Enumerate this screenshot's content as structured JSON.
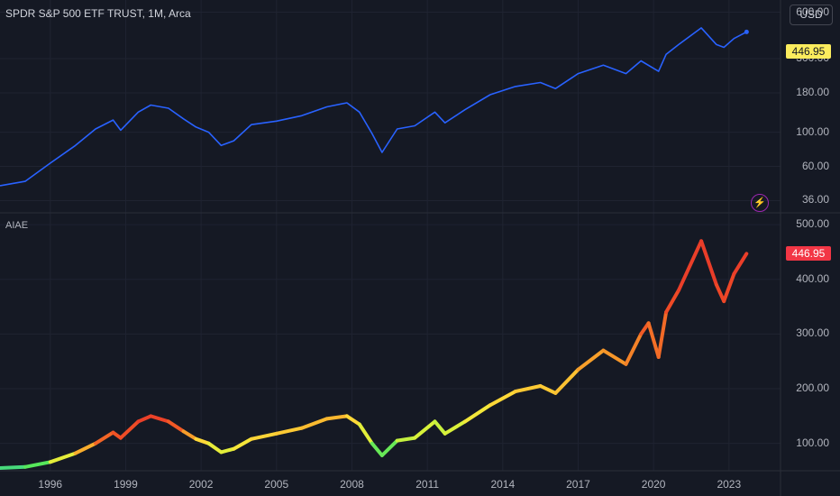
{
  "header": {
    "symbol_title": "SPDR S&P 500 ETF TRUST, 1M, Arca",
    "currency_button": "USD"
  },
  "indicator_pane": {
    "label": "AIAE"
  },
  "price_badges": {
    "top_pane": "446.95",
    "bottom_pane": "446.95"
  },
  "icons": {
    "alert": "lightning-bolt-icon"
  },
  "colors": {
    "background": "#151924",
    "top_series_line": "#2962ff",
    "top_badge": "#fbec5d",
    "bottom_badge": "#f23645",
    "gradient": [
      "#3ab0e0",
      "#4be65e",
      "#d8f23a",
      "#ffe23a",
      "#f7a12a",
      "#f05025",
      "#e42d2d"
    ]
  },
  "chart_data": [
    {
      "type": "line",
      "title": "SPDR S&P 500 ETF TRUST, 1M, Arca",
      "y_scale": "log",
      "ylim": [
        30,
        720
      ],
      "y_ticks": [
        "600.00",
        "300.00",
        "180.00",
        "100.00",
        "60.00",
        "36.00"
      ],
      "x_ticks": [
        "1996",
        "1999",
        "2002",
        "2005",
        "2008",
        "2011",
        "2014",
        "2017",
        "2020",
        "2023"
      ],
      "last_value": "446.95",
      "series": [
        {
          "x": [
            1994.0,
            1995.0,
            1996.0,
            1997.0,
            1997.8,
            1998.5,
            1998.8,
            1999.5,
            2000.0,
            2000.7,
            2001.3,
            2001.8,
            2002.3,
            2002.8,
            2003.3,
            2004.0,
            2005.0,
            2006.0,
            2007.0,
            2007.8,
            2008.3,
            2008.8,
            2009.2,
            2009.8,
            2010.5,
            2011.3,
            2011.7,
            2012.5,
            2013.5,
            2014.5,
            2015.5,
            2016.1,
            2017.0,
            2018.0,
            2018.9,
            2019.5,
            2020.2,
            2020.5,
            2021.0,
            2021.9,
            2022.5,
            2022.8,
            2023.2,
            2023.7
          ],
          "y": [
            45,
            48,
            63,
            82,
            105,
            120,
            103,
            135,
            150,
            143,
            122,
            108,
            100,
            82,
            88,
            112,
            118,
            128,
            146,
            155,
            135,
            98,
            74,
            105,
            110,
            135,
            115,
            140,
            175,
            198,
            210,
            192,
            240,
            272,
            240,
            290,
            248,
            320,
            370,
            475,
            370,
            355,
            405,
            447
          ]
        }
      ]
    },
    {
      "type": "line",
      "title": "AIAE",
      "y_scale": "linear",
      "ylim": [
        50,
        520
      ],
      "y_ticks": [
        "500.00",
        "400.00",
        "300.00",
        "200.00",
        "100.00"
      ],
      "x_ticks": [
        "1996",
        "1999",
        "2002",
        "2005",
        "2008",
        "2011",
        "2014",
        "2017",
        "2020",
        "2023"
      ],
      "last_value": "446.95",
      "series": [
        {
          "x": [
            1994.0,
            1995.0,
            1996.0,
            1997.0,
            1997.8,
            1998.5,
            1998.8,
            1999.5,
            2000.0,
            2000.7,
            2001.3,
            2001.8,
            2002.3,
            2002.8,
            2003.3,
            2004.0,
            2005.0,
            2006.0,
            2007.0,
            2007.8,
            2008.3,
            2008.8,
            2009.2,
            2009.8,
            2010.5,
            2011.3,
            2011.7,
            2012.5,
            2013.5,
            2014.5,
            2015.5,
            2016.1,
            2017.0,
            2018.0,
            2018.9,
            2019.5,
            2019.8,
            2020.2,
            2020.5,
            2021.0,
            2021.9,
            2022.5,
            2022.8,
            2023.2,
            2023.7
          ],
          "y": [
            55,
            57,
            66,
            82,
            100,
            120,
            110,
            140,
            150,
            140,
            122,
            108,
            100,
            84,
            90,
            108,
            118,
            128,
            145,
            150,
            135,
            100,
            78,
            105,
            110,
            140,
            118,
            140,
            170,
            195,
            205,
            192,
            235,
            270,
            245,
            300,
            320,
            258,
            340,
            380,
            470,
            390,
            360,
            410,
            447
          ],
          "gradient_strength": [
            0.12,
            0.14,
            0.22,
            0.55,
            0.72,
            0.86,
            0.8,
            0.9,
            0.92,
            0.88,
            0.75,
            0.6,
            0.45,
            0.35,
            0.4,
            0.52,
            0.55,
            0.58,
            0.62,
            0.6,
            0.45,
            0.3,
            0.1,
            0.3,
            0.32,
            0.35,
            0.28,
            0.4,
            0.5,
            0.55,
            0.58,
            0.55,
            0.62,
            0.72,
            0.66,
            0.8,
            0.82,
            0.72,
            0.84,
            0.88,
            0.95,
            0.9,
            0.86,
            0.9,
            0.94
          ]
        }
      ]
    }
  ]
}
